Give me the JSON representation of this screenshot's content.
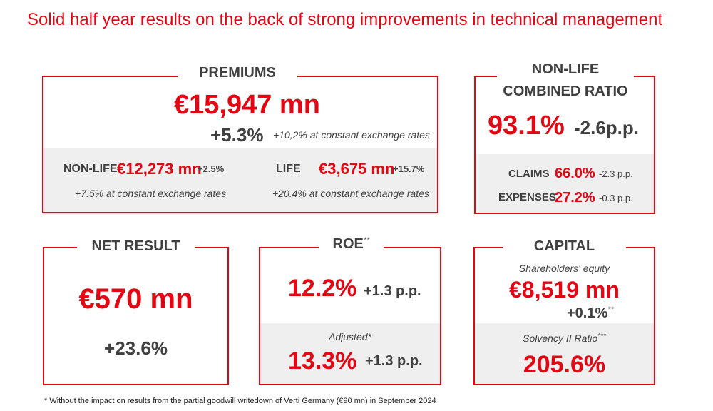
{
  "title": "Solid half year results on the back of strong improvements in technical management",
  "premiums": {
    "heading": "PREMIUMS",
    "total": "€15,947 mn",
    "growth": "+5.3%",
    "growth_note": "+10,2% at constant exchange rates",
    "nonlife_label": "NON-LIFE",
    "nonlife_value": "€12,273 mn",
    "nonlife_growth": "+2.5%",
    "nonlife_note": "+7.5% at constant exchange rates",
    "life_label": "LIFE",
    "life_value": "€3,675 mn",
    "life_growth": "+15.7%",
    "life_note": "+20.4% at constant exchange rates"
  },
  "combined_ratio": {
    "heading_line1": "NON-LIFE",
    "heading_line2": "COMBINED RATIO",
    "value": "93.1%",
    "change": "-2.6p.p.",
    "claims_label": "CLAIMS",
    "claims_value": "66.0%",
    "claims_change": "-2.3 p.p.",
    "expenses_label": "EXPENSES",
    "expenses_value": "27.2%",
    "expenses_change": "-0.3 p.p."
  },
  "net_result": {
    "heading": "NET RESULT",
    "value": "€570 mn",
    "growth": "+23.6%"
  },
  "roe": {
    "heading": "ROE",
    "heading_mark": "**",
    "value": "12.2%",
    "change": "+1.3 p.p.",
    "adjusted_label": "Adjusted*",
    "adjusted_value": "13.3%",
    "adjusted_change": "+1.3 p.p."
  },
  "capital": {
    "heading": "CAPITAL",
    "equity_label": "Shareholders' equity",
    "equity_value": "€8,519 mn",
    "equity_growth": "+0.1%",
    "equity_mark": "**",
    "solvency_label": "Solvency II Ratio",
    "solvency_mark": "***",
    "solvency_value": "205.6%"
  },
  "footnote": "* Without the impact on results from the partial goodwill writedown of Verti Germany (€90 mn) in September 2024",
  "colors": {
    "accent": "#e30613",
    "text": "#404040",
    "panel": "#efefef"
  }
}
